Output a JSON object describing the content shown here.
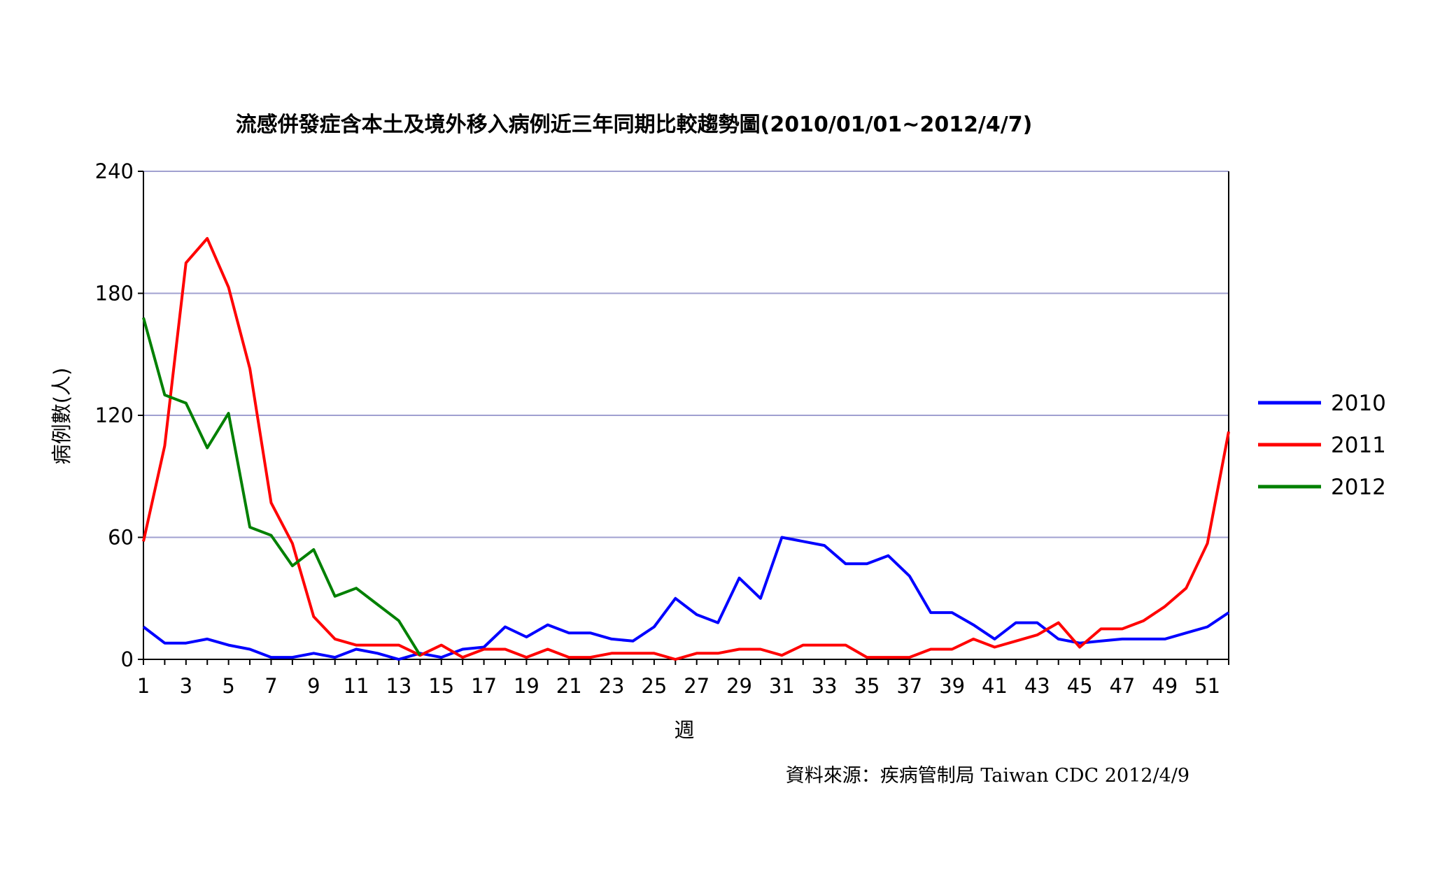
{
  "chart_data": {
    "type": "line",
    "title": "流感併發症含本土及境外移入病例近三年同期比較趨勢圖(2010/01/01~2012/4/7)",
    "xlabel": "週",
    "ylabel": "病例數(人)",
    "source": "資料來源：疾病管制局 Taiwan CDC 2012/4/9",
    "ylim": [
      0,
      240
    ],
    "yticks": [
      "0",
      "60",
      "120",
      "180",
      "240"
    ],
    "xlim": [
      1,
      52
    ],
    "xticks": [
      "1",
      "3",
      "5",
      "7",
      "9",
      "11",
      "13",
      "15",
      "17",
      "19",
      "21",
      "23",
      "25",
      "27",
      "29",
      "31",
      "33",
      "35",
      "37",
      "39",
      "41",
      "43",
      "45",
      "47",
      "49",
      "51"
    ],
    "grid": true,
    "legend_position": "right",
    "series": [
      {
        "name": "2010",
        "color": "#0000ff",
        "x": [
          1,
          2,
          3,
          4,
          5,
          6,
          7,
          8,
          9,
          10,
          11,
          12,
          13,
          14,
          15,
          16,
          17,
          18,
          19,
          20,
          21,
          22,
          23,
          24,
          25,
          26,
          27,
          28,
          29,
          30,
          31,
          32,
          33,
          34,
          35,
          36,
          37,
          38,
          39,
          40,
          41,
          42,
          43,
          44,
          45,
          46,
          47,
          48,
          49,
          50,
          51,
          52
        ],
        "values": [
          16,
          8,
          8,
          10,
          7,
          5,
          1,
          1,
          3,
          1,
          5,
          3,
          0,
          3,
          1,
          5,
          6,
          16,
          11,
          17,
          13,
          13,
          10,
          9,
          16,
          30,
          22,
          18,
          40,
          30,
          60,
          58,
          56,
          47,
          47,
          51,
          41,
          23,
          23,
          17,
          10,
          18,
          18,
          10,
          8,
          9,
          10,
          10,
          10,
          13,
          16,
          23
        ]
      },
      {
        "name": "2011",
        "color": "#ff0000",
        "x": [
          1,
          2,
          3,
          4,
          5,
          6,
          7,
          8,
          9,
          10,
          11,
          12,
          13,
          14,
          15,
          16,
          17,
          18,
          19,
          20,
          21,
          22,
          23,
          24,
          25,
          26,
          27,
          28,
          29,
          30,
          31,
          32,
          33,
          34,
          35,
          36,
          37,
          38,
          39,
          40,
          41,
          42,
          43,
          44,
          45,
          46,
          47,
          48,
          49,
          50,
          51,
          52
        ],
        "values": [
          58,
          105,
          195,
          207,
          183,
          143,
          77,
          57,
          21,
          10,
          7,
          7,
          7,
          2,
          7,
          1,
          5,
          5,
          1,
          5,
          1,
          1,
          3,
          3,
          3,
          0,
          3,
          3,
          5,
          5,
          2,
          7,
          7,
          7,
          1,
          1,
          1,
          5,
          5,
          10,
          6,
          9,
          12,
          18,
          6,
          15,
          15,
          19,
          26,
          35,
          57,
          112
        ]
      },
      {
        "name": "2012",
        "color": "#008000",
        "x": [
          1,
          2,
          3,
          4,
          5,
          6,
          7,
          8,
          9,
          10,
          11,
          12,
          13,
          14
        ],
        "values": [
          168,
          130,
          126,
          104,
          121,
          65,
          61,
          46,
          54,
          31,
          35,
          27,
          19,
          2
        ]
      }
    ]
  }
}
